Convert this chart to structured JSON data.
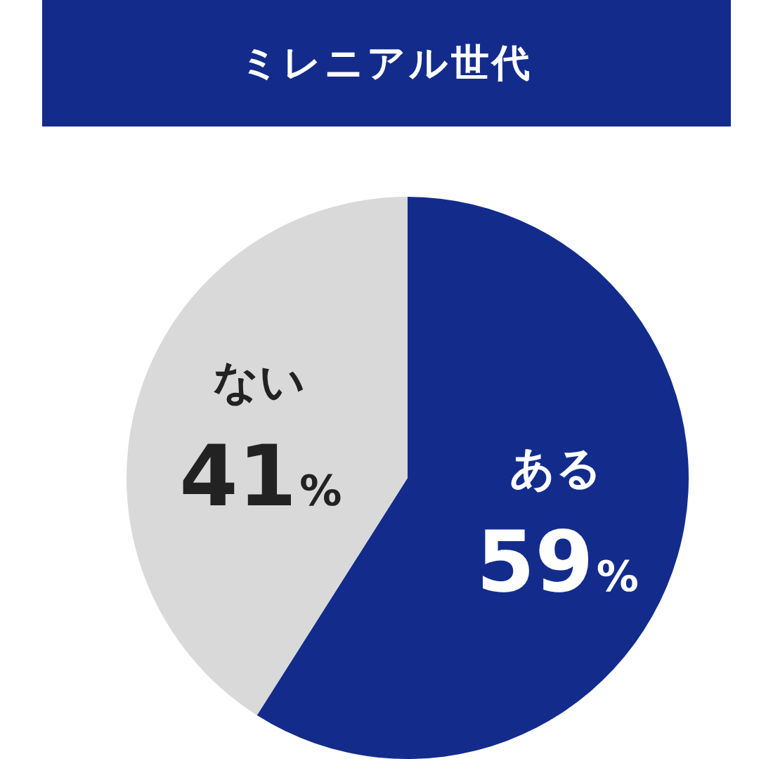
{
  "chart_data": {
    "type": "pie",
    "title": "ミレニアル世代",
    "categories": [
      "ある",
      "ない"
    ],
    "values": [
      59,
      41
    ],
    "colors": [
      "#132c8c",
      "#d9d9d9"
    ],
    "value_labels": [
      "59%",
      "41%"
    ]
  }
}
